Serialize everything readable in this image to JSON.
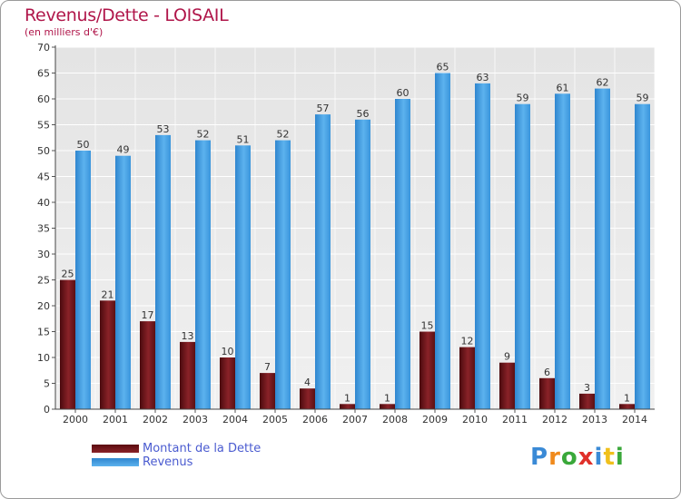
{
  "chart_data": {
    "type": "bar",
    "title": "Revenus/Dette - LOISAIL",
    "subtitle": "(en milliers d'€)",
    "categories": [
      "2000",
      "2001",
      "2002",
      "2003",
      "2004",
      "2005",
      "2006",
      "2007",
      "2008",
      "2009",
      "2010",
      "2011",
      "2012",
      "2013",
      "2014"
    ],
    "series": [
      {
        "name": "Montant de la Dette",
        "color": "#7a1a1e",
        "values": [
          25,
          21,
          17,
          13,
          10,
          7,
          4,
          1,
          1,
          15,
          12,
          9,
          6,
          3,
          1
        ]
      },
      {
        "name": "Revenus",
        "color": "#3b9be0",
        "values": [
          50,
          49,
          53,
          52,
          51,
          52,
          57,
          56,
          60,
          65,
          63,
          59,
          61,
          62,
          59
        ]
      }
    ],
    "yticks": [
      0,
      5,
      10,
      15,
      20,
      25,
      30,
      35,
      40,
      45,
      50,
      55,
      60,
      65,
      70
    ],
    "ylim": [
      0,
      70
    ],
    "grid": true,
    "legend_position": "bottom-left"
  },
  "branding": {
    "logo_letters": [
      "P",
      "r",
      "o",
      "x",
      "i",
      "t",
      "i"
    ],
    "logo_colors": [
      "#3a8ad6",
      "#f08a1c",
      "#3aa83a",
      "#e0302a",
      "#3a8ad6",
      "#f0c01c",
      "#3aa83a"
    ]
  }
}
